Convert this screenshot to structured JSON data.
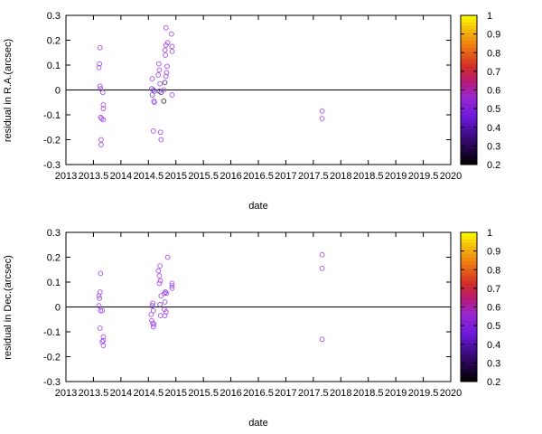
{
  "chart_data": [
    {
      "type": "scatter",
      "title": "",
      "xlabel": "date",
      "ylabel": "residual in R.A.(arcsec)",
      "xlim": [
        2013,
        2020
      ],
      "ylim": [
        -0.3,
        0.3
      ],
      "grid": false,
      "zero_line": true,
      "x_ticks": [
        "2013",
        "2013.5",
        "2014",
        "2014.5",
        "2015",
        "2015.5",
        "2016",
        "2016.5",
        "2017",
        "2017.5",
        "2018",
        "2018.5",
        "2019",
        "2019.5",
        "2020"
      ],
      "x_tick_values": [
        2013,
        2013.5,
        2014,
        2014.5,
        2015,
        2015.5,
        2016,
        2016.5,
        2017,
        2017.5,
        2018,
        2018.5,
        2019,
        2019.5,
        2020
      ],
      "y_ticks": [
        "-0.3",
        "-0.2",
        "-0.1",
        "0",
        "0.1",
        "0.2",
        "0.3"
      ],
      "y_tick_values": [
        -0.3,
        -0.2,
        -0.1,
        0,
        0.1,
        0.2,
        0.3
      ],
      "colorbar": {
        "range": [
          0.2,
          1
        ],
        "ticks": [
          "0.2",
          "0.3",
          "0.4",
          "0.5",
          "0.6",
          "0.7",
          "0.8",
          "0.9",
          "1"
        ],
        "tick_values": [
          0.2,
          0.3,
          0.4,
          0.5,
          0.6,
          0.7,
          0.8,
          0.9,
          1
        ]
      },
      "points": [
        {
          "x": 2013.62,
          "y": 0.17,
          "c": 0.5
        },
        {
          "x": 2013.61,
          "y": 0.105,
          "c": 0.5
        },
        {
          "x": 2013.6,
          "y": 0.09,
          "c": 0.5
        },
        {
          "x": 2013.62,
          "y": 0.015,
          "c": 0.5
        },
        {
          "x": 2013.63,
          "y": 0.005,
          "c": 0.5
        },
        {
          "x": 2013.67,
          "y": -0.01,
          "c": 0.5
        },
        {
          "x": 2013.68,
          "y": -0.06,
          "c": 0.5
        },
        {
          "x": 2013.68,
          "y": -0.075,
          "c": 0.5
        },
        {
          "x": 2013.65,
          "y": -0.115,
          "c": 0.5
        },
        {
          "x": 2013.63,
          "y": -0.11,
          "c": 0.5
        },
        {
          "x": 2013.68,
          "y": -0.12,
          "c": 0.5
        },
        {
          "x": 2013.64,
          "y": -0.2,
          "c": 0.5
        },
        {
          "x": 2013.64,
          "y": -0.22,
          "c": 0.5
        },
        {
          "x": 2014.57,
          "y": 0.045,
          "c": 0.5
        },
        {
          "x": 2014.56,
          "y": 0.005,
          "c": 0.4
        },
        {
          "x": 2014.59,
          "y": 0.0,
          "c": 0.4
        },
        {
          "x": 2014.61,
          "y": -0.005,
          "c": 0.4
        },
        {
          "x": 2014.57,
          "y": -0.02,
          "c": 0.4
        },
        {
          "x": 2014.6,
          "y": -0.045,
          "c": 0.5
        },
        {
          "x": 2014.61,
          "y": -0.05,
          "c": 0.5
        },
        {
          "x": 2014.59,
          "y": -0.165,
          "c": 0.5
        },
        {
          "x": 2014.69,
          "y": 0.105,
          "c": 0.5
        },
        {
          "x": 2014.7,
          "y": 0.08,
          "c": 0.5
        },
        {
          "x": 2014.68,
          "y": 0.06,
          "c": 0.5
        },
        {
          "x": 2014.71,
          "y": 0.025,
          "c": 0.5
        },
        {
          "x": 2014.7,
          "y": -0.005,
          "c": 0.4
        },
        {
          "x": 2014.73,
          "y": -0.01,
          "c": 0.3
        },
        {
          "x": 2014.72,
          "y": -0.17,
          "c": 0.5
        },
        {
          "x": 2014.73,
          "y": -0.2,
          "c": 0.5
        },
        {
          "x": 2014.78,
          "y": -0.045,
          "c": 0.25
        },
        {
          "x": 2014.8,
          "y": 0.03,
          "c": 0.3
        },
        {
          "x": 2014.78,
          "y": 0.0,
          "c": 0.5
        },
        {
          "x": 2014.82,
          "y": 0.25,
          "c": 0.5
        },
        {
          "x": 2014.85,
          "y": 0.19,
          "c": 0.5
        },
        {
          "x": 2014.82,
          "y": 0.18,
          "c": 0.5
        },
        {
          "x": 2014.8,
          "y": 0.16,
          "c": 0.5
        },
        {
          "x": 2014.81,
          "y": 0.14,
          "c": 0.5
        },
        {
          "x": 2014.84,
          "y": 0.095,
          "c": 0.5
        },
        {
          "x": 2014.83,
          "y": 0.07,
          "c": 0.5
        },
        {
          "x": 2014.82,
          "y": 0.055,
          "c": 0.5
        },
        {
          "x": 2014.92,
          "y": 0.225,
          "c": 0.5
        },
        {
          "x": 2014.93,
          "y": 0.175,
          "c": 0.5
        },
        {
          "x": 2014.93,
          "y": 0.155,
          "c": 0.5
        },
        {
          "x": 2014.93,
          "y": -0.02,
          "c": 0.5
        },
        {
          "x": 2017.66,
          "y": -0.085,
          "c": 0.5
        },
        {
          "x": 2017.66,
          "y": -0.115,
          "c": 0.5
        }
      ]
    },
    {
      "type": "scatter",
      "title": "",
      "xlabel": "date",
      "ylabel": "residual in Dec.(arcsec)",
      "xlim": [
        2013,
        2020
      ],
      "ylim": [
        -0.3,
        0.3
      ],
      "grid": false,
      "zero_line": true,
      "x_ticks": [
        "2013",
        "2013.5",
        "2014",
        "2014.5",
        "2015",
        "2015.5",
        "2016",
        "2016.5",
        "2017",
        "2017.5",
        "2018",
        "2018.5",
        "2019",
        "2019.5",
        "2020"
      ],
      "x_tick_values": [
        2013,
        2013.5,
        2014,
        2014.5,
        2015,
        2015.5,
        2016,
        2016.5,
        2017,
        2017.5,
        2018,
        2018.5,
        2019,
        2019.5,
        2020
      ],
      "y_ticks": [
        "-0.3",
        "-0.2",
        "-0.1",
        "0",
        "0.1",
        "0.2",
        "0.3"
      ],
      "y_tick_values": [
        -0.3,
        -0.2,
        -0.1,
        0,
        0.1,
        0.2,
        0.3
      ],
      "colorbar": {
        "range": [
          0.2,
          1
        ],
        "ticks": [
          "0.2",
          "0.3",
          "0.4",
          "0.5",
          "0.6",
          "0.7",
          "0.8",
          "0.9",
          "1"
        ],
        "tick_values": [
          0.2,
          0.3,
          0.4,
          0.5,
          0.6,
          0.7,
          0.8,
          0.9,
          1
        ]
      },
      "points": [
        {
          "x": 2013.63,
          "y": 0.135,
          "c": 0.5
        },
        {
          "x": 2013.62,
          "y": 0.06,
          "c": 0.5
        },
        {
          "x": 2013.6,
          "y": 0.045,
          "c": 0.5
        },
        {
          "x": 2013.61,
          "y": 0.035,
          "c": 0.5
        },
        {
          "x": 2013.6,
          "y": 0.005,
          "c": 0.5
        },
        {
          "x": 2013.63,
          "y": -0.015,
          "c": 0.5
        },
        {
          "x": 2013.66,
          "y": -0.015,
          "c": 0.5
        },
        {
          "x": 2013.62,
          "y": -0.085,
          "c": 0.5
        },
        {
          "x": 2013.68,
          "y": -0.12,
          "c": 0.5
        },
        {
          "x": 2013.68,
          "y": -0.135,
          "c": 0.5
        },
        {
          "x": 2013.66,
          "y": -0.14,
          "c": 0.5
        },
        {
          "x": 2013.68,
          "y": -0.155,
          "c": 0.5
        },
        {
          "x": 2014.58,
          "y": 0.015,
          "c": 0.5
        },
        {
          "x": 2014.57,
          "y": 0.005,
          "c": 0.4
        },
        {
          "x": 2014.59,
          "y": -0.015,
          "c": 0.5
        },
        {
          "x": 2014.55,
          "y": -0.03,
          "c": 0.5
        },
        {
          "x": 2014.56,
          "y": -0.055,
          "c": 0.5
        },
        {
          "x": 2014.58,
          "y": -0.065,
          "c": 0.5
        },
        {
          "x": 2014.6,
          "y": -0.07,
          "c": 0.5
        },
        {
          "x": 2014.59,
          "y": -0.08,
          "c": 0.5
        },
        {
          "x": 2014.68,
          "y": 0.145,
          "c": 0.5
        },
        {
          "x": 2014.71,
          "y": 0.165,
          "c": 0.5
        },
        {
          "x": 2014.7,
          "y": 0.125,
          "c": 0.5
        },
        {
          "x": 2014.72,
          "y": 0.105,
          "c": 0.5
        },
        {
          "x": 2014.7,
          "y": 0.095,
          "c": 0.5
        },
        {
          "x": 2014.73,
          "y": 0.045,
          "c": 0.5
        },
        {
          "x": 2014.71,
          "y": 0.01,
          "c": 0.4
        },
        {
          "x": 2014.72,
          "y": -0.035,
          "c": 0.5
        },
        {
          "x": 2014.79,
          "y": 0.055,
          "c": 0.5
        },
        {
          "x": 2014.81,
          "y": 0.06,
          "c": 0.4
        },
        {
          "x": 2014.8,
          "y": 0.02,
          "c": 0.5
        },
        {
          "x": 2014.79,
          "y": -0.01,
          "c": 0.5
        },
        {
          "x": 2014.82,
          "y": -0.02,
          "c": 0.5
        },
        {
          "x": 2014.8,
          "y": -0.035,
          "c": 0.5
        },
        {
          "x": 2014.83,
          "y": 0.055,
          "c": 0.5
        },
        {
          "x": 2014.85,
          "y": 0.2,
          "c": 0.5
        },
        {
          "x": 2014.93,
          "y": 0.095,
          "c": 0.5
        },
        {
          "x": 2014.93,
          "y": 0.085,
          "c": 0.5
        },
        {
          "x": 2014.93,
          "y": 0.075,
          "c": 0.5
        },
        {
          "x": 2017.66,
          "y": 0.21,
          "c": 0.5
        },
        {
          "x": 2017.66,
          "y": 0.155,
          "c": 0.5
        },
        {
          "x": 2017.66,
          "y": -0.13,
          "c": 0.5
        }
      ]
    }
  ]
}
